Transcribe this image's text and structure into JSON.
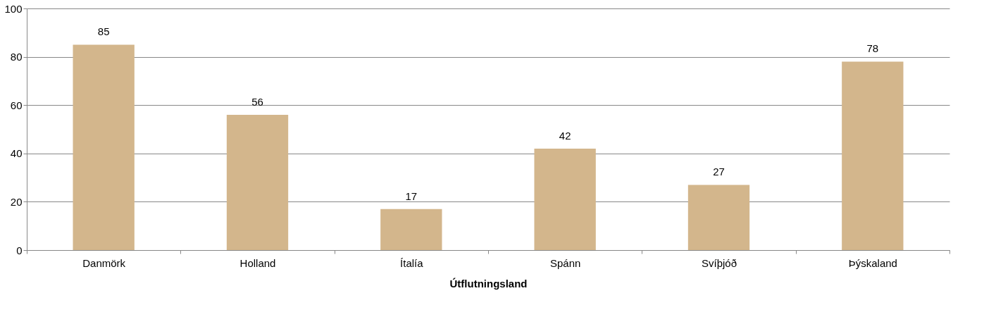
{
  "chart_data": {
    "type": "bar",
    "xlabel": "Útflutningsland",
    "categories": [
      "Danmörk",
      "Holland",
      "Ítalía",
      "Spánn",
      "Svíþjóð",
      "Þýskaland"
    ],
    "values": [
      85,
      56,
      17,
      42,
      27,
      78
    ],
    "color": "#d3b68c",
    "ylim": [
      0,
      100
    ],
    "yticks": [
      0,
      20,
      40,
      60,
      80,
      100
    ],
    "grid": "y",
    "data_labels": true
  }
}
